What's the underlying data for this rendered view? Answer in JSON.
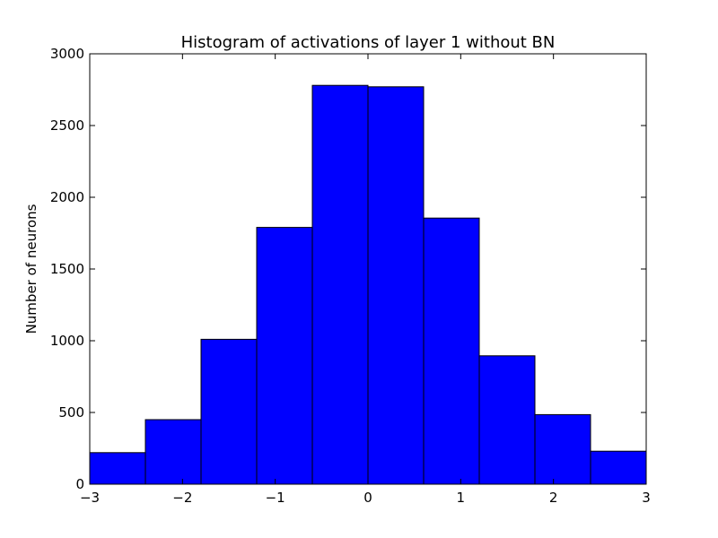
{
  "chart_data": {
    "type": "bar",
    "title": "Histogram of activations of layer 1  without BN",
    "xlabel": "",
    "ylabel": "Number of neurons",
    "bin_edges": [
      -3,
      -2.4,
      -1.8,
      -1.2,
      -0.6,
      0,
      0.6,
      1.2,
      1.8,
      2.4,
      3
    ],
    "values": [
      220,
      450,
      1010,
      1790,
      2780,
      2770,
      1855,
      895,
      485,
      230
    ],
    "xlim": [
      -3,
      3
    ],
    "ylim": [
      0,
      3000
    ],
    "xticks": [
      -3,
      -2,
      -1,
      0,
      1,
      2,
      3
    ],
    "xtick_labels": [
      "−3",
      "−2",
      "−1",
      "0",
      "1",
      "2",
      "3"
    ],
    "yticks": [
      0,
      500,
      1000,
      1500,
      2000,
      2500,
      3000
    ],
    "ytick_labels": [
      "0",
      "500",
      "1000",
      "1500",
      "2000",
      "2500",
      "3000"
    ],
    "bar_color": "#0000ff",
    "edge_color": "#000000",
    "grid": false,
    "legend": "none"
  }
}
